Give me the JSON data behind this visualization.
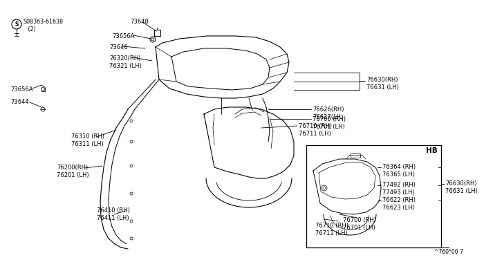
{
  "bg_color": "#ffffff",
  "line_color": "#000000",
  "text_color": "#000000",
  "part_code": "^760*00 7",
  "fs": 6.0,
  "labels": {
    "bolt_label": "S08363-61638\n   (2)",
    "73648": "73648",
    "73656A_top": "73656A",
    "73646": "73646",
    "76320": "76320(RH)\n76321 (LH)",
    "73656A_left": "73656A",
    "73644": "73644",
    "76310": "76310 (RH)\n76311 (LH)",
    "76200": "76200(RH)\n76201 (LH)",
    "76410": "76410 (RH)\n76411 (LH)",
    "76630_top": "76630(RH)\n76631 (LH)",
    "76626": "76626(RH)\n76627(LH)",
    "76700_top": "76700 (RH)\n76701 (LH)",
    "76710_top": "76710 (RH)\n76711 (LH)",
    "HB": "HB",
    "76364": "76364 (RH)\n76365 (LH)",
    "77492": "77492 (RH)\n77493 (LH)",
    "76622": "76622 (RH)\n76623 (LH)",
    "76630_hb": "76630(RH)\n76631 (LH)",
    "76700_hb": "76700 (RH)\n76701 (LH)",
    "76710_hb": "76710 (RH)\n76711 (LH)"
  }
}
